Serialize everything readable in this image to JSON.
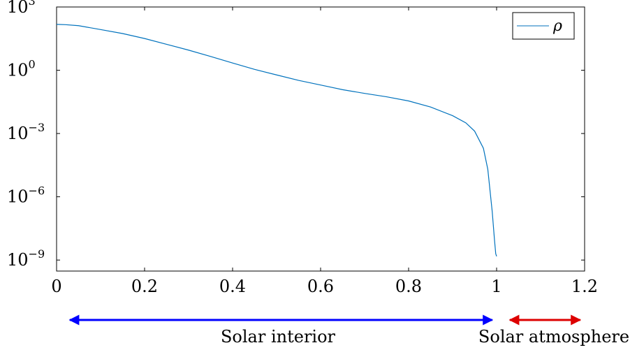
{
  "chart_data": {
    "type": "line",
    "y_scale": "log",
    "xlim": [
      0,
      1.2
    ],
    "ylim": [
      3e-10,
      1000
    ],
    "x_ticks": [
      0,
      0.2,
      0.4,
      0.6,
      0.8,
      1,
      1.2
    ],
    "x_tick_labels": [
      "0",
      "0.2",
      "0.4",
      "0.6",
      "0.8",
      "1",
      "1.2"
    ],
    "y_ticks": [
      {
        "value": 1e-09,
        "base": "10",
        "exp": "−9"
      },
      {
        "value": 1e-06,
        "base": "10",
        "exp": "−6"
      },
      {
        "value": 0.001,
        "base": "10",
        "exp": "−3"
      },
      {
        "value": 1,
        "base": "10",
        "exp": "0"
      },
      {
        "value": 1000,
        "base": "10",
        "exp": "3"
      }
    ],
    "grid": false,
    "legend_position": "top-right",
    "series": [
      {
        "name": "ρ",
        "color": "#0072bd",
        "x": [
          0,
          0.02,
          0.05,
          0.1,
          0.15,
          0.2,
          0.25,
          0.3,
          0.35,
          0.4,
          0.45,
          0.5,
          0.55,
          0.6,
          0.65,
          0.7,
          0.75,
          0.8,
          0.85,
          0.9,
          0.93,
          0.95,
          0.97,
          0.98,
          0.99,
          0.995,
          0.998,
          1.0
        ],
        "y": [
          150,
          145,
          130,
          85,
          55,
          32,
          17,
          9,
          4.5,
          2.2,
          1.1,
          0.6,
          0.33,
          0.2,
          0.12,
          0.08,
          0.055,
          0.035,
          0.018,
          0.007,
          0.0032,
          0.0013,
          0.0002,
          2e-05,
          2e-07,
          1e-08,
          2e-09,
          1.5e-09
        ]
      }
    ]
  },
  "annotations": {
    "interior": {
      "label": "Solar interior",
      "color": "#0000ff",
      "x_start": 0.03,
      "x_end": 0.99
    },
    "atmosphere": {
      "label": "Solar atmosphere",
      "color": "#dd0000",
      "x_start": 1.03,
      "x_end": 1.19
    }
  }
}
